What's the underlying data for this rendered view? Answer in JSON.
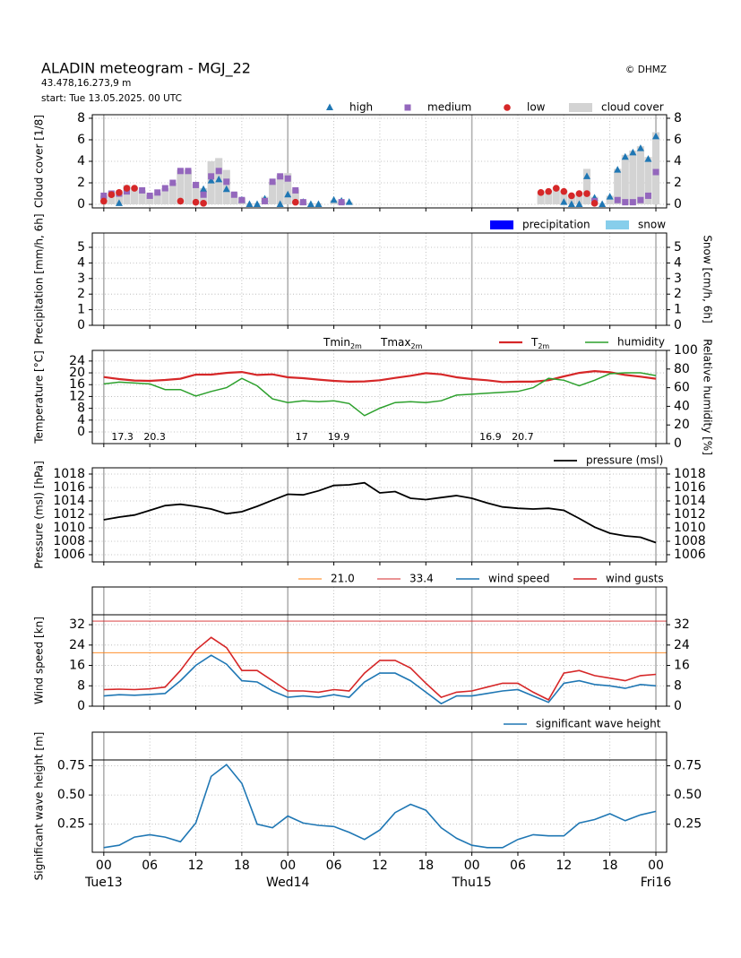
{
  "header": {
    "title": "ALADIN meteogram - MGJ_22",
    "coords": "43.478,16.273,9 m",
    "start": "start: Tue 13.05.2025. 00 UTC",
    "credit": "© DHMZ"
  },
  "time_axis": {
    "xlim": [
      -1.5,
      73.4
    ],
    "xticks": [
      {
        "value": 0,
        "label": "00"
      },
      {
        "value": 6,
        "label": "06"
      },
      12,
      18,
      {
        "value": 24,
        "label": "00"
      },
      {
        "value": 30,
        "label": "06"
      },
      {
        "value": 36,
        "label": "12"
      },
      {
        "value": 42,
        "label": "18"
      },
      {
        "value": 48,
        "label": "00"
      },
      {
        "value": 54,
        "label": "06"
      },
      {
        "value": 60,
        "label": "12"
      },
      {
        "value": 66,
        "label": "18"
      },
      {
        "value": 72,
        "label": "00"
      }
    ],
    "day_ticks": [
      {
        "value": 0,
        "label": "Tue13"
      },
      {
        "value": 24,
        "label": "Wed14"
      },
      {
        "value": 48,
        "label": "Thu15"
      },
      {
        "value": 72,
        "label": "Fri16"
      }
    ]
  },
  "chart_data": [
    {
      "type": "scatter",
      "ylabel": "Cloud cover [1/8]",
      "ylim": [
        -0.33,
        8.33
      ],
      "yticks": [
        0,
        2,
        4,
        6,
        8
      ],
      "grid": true,
      "x": [
        0,
        1,
        2,
        3,
        4,
        5,
        6,
        7,
        8,
        9,
        10,
        11,
        12,
        13,
        14,
        15,
        16,
        17,
        18,
        19,
        20,
        21,
        22,
        23,
        24,
        25,
        26,
        27,
        28,
        29,
        30,
        31,
        32,
        33,
        34,
        35,
        36,
        37,
        38,
        39,
        40,
        41,
        42,
        43,
        44,
        45,
        46,
        47,
        48,
        49,
        50,
        51,
        52,
        53,
        54,
        55,
        56,
        57,
        58,
        59,
        60,
        61,
        62,
        63,
        64,
        65,
        66,
        67,
        68,
        69,
        70,
        71,
        72
      ],
      "series": [
        {
          "name": "high",
          "type": "scatter",
          "marker": "triangle",
          "color": "#1f77b4",
          "values": [
            null,
            null,
            0.1,
            null,
            null,
            null,
            null,
            null,
            null,
            null,
            null,
            null,
            null,
            1.4,
            2.2,
            2.3,
            1.4,
            null,
            0.4,
            0,
            0,
            0.5,
            null,
            0,
            0.9,
            null,
            0.2,
            0,
            0,
            null,
            0.4,
            0.3,
            0.2,
            null,
            null,
            null,
            null,
            null,
            null,
            null,
            null,
            null,
            null,
            null,
            null,
            null,
            null,
            null,
            null,
            null,
            null,
            null,
            null,
            null,
            null,
            null,
            null,
            null,
            null,
            null,
            0.2,
            0,
            0,
            2.6,
            0.6,
            0,
            0.7,
            3.2,
            4.4,
            4.8,
            5.2,
            4.2,
            6.3
          ]
        },
        {
          "name": "medium",
          "type": "scatter",
          "marker": "square",
          "color": "#9467bd",
          "values": [
            0.8,
            1.0,
            1.0,
            1.2,
            null,
            1.3,
            0.8,
            1.1,
            1.5,
            2.0,
            3.1,
            3.1,
            1.8,
            0.9,
            2.6,
            3.1,
            2.1,
            0.9,
            0.4,
            null,
            null,
            0.3,
            2.1,
            2.6,
            2.4,
            1.3,
            0.2,
            null,
            null,
            null,
            null,
            0.2,
            null,
            null,
            null,
            null,
            null,
            null,
            null,
            null,
            null,
            null,
            null,
            null,
            null,
            null,
            null,
            null,
            null,
            null,
            null,
            null,
            null,
            null,
            null,
            null,
            null,
            null,
            null,
            null,
            null,
            null,
            null,
            null,
            0.3,
            null,
            null,
            0.4,
            0.2,
            0.2,
            0.4,
            0.8,
            3.0
          ]
        },
        {
          "name": "low",
          "type": "scatter",
          "marker": "circle",
          "color": "#d62728",
          "values": [
            0.3,
            0.9,
            1.1,
            1.5,
            1.5,
            null,
            null,
            null,
            null,
            null,
            0.3,
            null,
            0.2,
            0.1,
            null,
            null,
            null,
            null,
            null,
            null,
            null,
            null,
            null,
            null,
            null,
            0.2,
            null,
            null,
            null,
            null,
            null,
            null,
            null,
            null,
            null,
            null,
            null,
            null,
            null,
            null,
            null,
            null,
            null,
            null,
            null,
            null,
            null,
            null,
            null,
            null,
            null,
            null,
            null,
            null,
            null,
            null,
            null,
            1.1,
            1.2,
            1.5,
            1.2,
            0.8,
            1.0,
            1.0,
            0.1,
            null,
            null,
            null,
            null,
            null,
            null,
            null,
            null
          ]
        },
        {
          "name": "cloud cover",
          "type": "bar",
          "color": "#d3d3d3",
          "values": [
            0.8,
            1.2,
            1.1,
            1.8,
            1.6,
            1.3,
            0.9,
            1.1,
            1.5,
            2.0,
            3.2,
            3.2,
            1.9,
            1.5,
            4.0,
            4.3,
            3.2,
            1.1,
            0.6,
            0.1,
            0.1,
            0.7,
            2.1,
            2.7,
            2.9,
            1.4,
            0.3,
            0.1,
            0.1,
            0,
            0.4,
            0.3,
            0.2,
            0,
            0,
            0,
            0,
            0,
            0,
            0,
            0,
            0,
            0,
            0,
            0,
            0,
            0,
            0,
            0,
            0,
            0,
            0,
            0,
            0,
            0,
            0,
            0,
            1.2,
            1.3,
            1.6,
            1.3,
            0.9,
            1.1,
            3.3,
            0.7,
            0.1,
            0.8,
            3.3,
            4.6,
            5.0,
            5.4,
            4.4,
            6.7
          ]
        }
      ]
    },
    {
      "type": "bar",
      "ylabel": "Precipitation [mm/h, 6h]",
      "y2label": "Snow [cm/h, 6h]",
      "ylim": [
        0,
        5.92
      ],
      "yticks": [
        0,
        1,
        2,
        3,
        4,
        5
      ],
      "grid": true,
      "x": [
        0,
        6,
        12,
        18,
        24,
        30,
        36,
        42,
        48,
        54,
        60,
        66,
        72
      ],
      "series": [
        {
          "name": "precipitation",
          "type": "bar",
          "color": "#0000ff",
          "values": [
            0,
            0,
            0,
            0,
            0,
            0,
            0,
            0,
            0,
            0,
            0,
            0,
            0
          ]
        },
        {
          "name": "snow",
          "type": "bar",
          "color": "#87ceeb",
          "values": [
            0,
            0,
            0,
            0,
            0,
            0,
            0,
            0,
            0,
            0,
            0,
            0,
            0
          ]
        }
      ]
    },
    {
      "type": "line",
      "ylabel": "Temperature [°C]",
      "y2label": "Relative humidity [%]",
      "ylim": [
        -3.95,
        27.6
      ],
      "yticks": [
        0,
        4,
        8,
        12,
        16,
        20,
        24
      ],
      "y2lim": [
        0,
        100
      ],
      "y2ticks": [
        0,
        20,
        40,
        60,
        80,
        100
      ],
      "grid": true,
      "x": [
        0,
        2,
        4,
        6,
        8,
        10,
        12,
        14,
        16,
        18,
        20,
        22,
        24,
        26,
        28,
        30,
        32,
        34,
        36,
        38,
        40,
        42,
        44,
        46,
        48,
        50,
        52,
        54,
        56,
        58,
        60,
        62,
        64,
        66,
        68,
        70,
        72
      ],
      "tmin_label": {
        "text": "Tmin",
        "sub": "2m",
        "color": "#1f77b4"
      },
      "tmax_label": {
        "text": "Tmax",
        "sub": "2m",
        "color": "#d62728"
      },
      "daily": {
        "tmin": [
          17.3,
          17.0,
          16.9
        ],
        "tmax": [
          20.3,
          19.9,
          20.7
        ]
      },
      "series": [
        {
          "name": "T",
          "name_sub": "2m",
          "type": "line",
          "color": "#d62728",
          "width": 2.2,
          "values": [
            18.6,
            17.9,
            17.4,
            17.3,
            17.6,
            18.0,
            19.4,
            19.4,
            20.0,
            20.3,
            19.3,
            19.5,
            18.5,
            18.2,
            17.7,
            17.3,
            17.0,
            17.1,
            17.5,
            18.3,
            19.0,
            19.9,
            19.5,
            18.5,
            17.9,
            17.5,
            16.9,
            17.0,
            17.0,
            17.5,
            18.8,
            20.0,
            20.6,
            20.2,
            19.3,
            18.7,
            18.0
          ]
        },
        {
          "name": "humidity",
          "type": "line",
          "axis": "y2",
          "color": "#2ca02c",
          "width": 1.5,
          "values": [
            64,
            66,
            65,
            64,
            58,
            58,
            51,
            56,
            60,
            70,
            62,
            48,
            44,
            46,
            45,
            46,
            43,
            30,
            38,
            44,
            45,
            44,
            46,
            52,
            53,
            54,
            55,
            56,
            60,
            70,
            68,
            62,
            68,
            75,
            76,
            76,
            73
          ]
        }
      ]
    },
    {
      "type": "line",
      "ylabel": "Pressure (msl) [hPa]",
      "ylim": [
        1004.93,
        1018.93
      ],
      "yticks": [
        1006,
        1008,
        1010,
        1012,
        1014,
        1016,
        1018
      ],
      "grid": true,
      "x": [
        0,
        2,
        4,
        6,
        8,
        10,
        12,
        14,
        16,
        18,
        20,
        22,
        24,
        26,
        28,
        30,
        32,
        34,
        36,
        38,
        40,
        42,
        44,
        46,
        48,
        50,
        52,
        54,
        56,
        58,
        60,
        62,
        64,
        66,
        68,
        70,
        72
      ],
      "series": [
        {
          "name": "pressure (msl)",
          "type": "line",
          "color": "#000000",
          "width": 1.8,
          "values": [
            1011.2,
            1011.6,
            1011.9,
            1012.6,
            1013.3,
            1013.5,
            1013.2,
            1012.8,
            1012.1,
            1012.4,
            1013.2,
            1014.1,
            1015.0,
            1014.9,
            1015.5,
            1016.3,
            1016.4,
            1016.7,
            1015.2,
            1015.4,
            1014.4,
            1014.2,
            1014.5,
            1014.8,
            1014.4,
            1013.7,
            1013.1,
            1012.9,
            1012.8,
            1012.9,
            1012.6,
            1011.4,
            1010.1,
            1009.2,
            1008.8,
            1008.6,
            1007.8
          ]
        }
      ]
    },
    {
      "type": "line",
      "ylabel": "Wind speed [kn]",
      "ylim": [
        0,
        35.9
      ],
      "yticks": [
        0,
        8,
        16,
        24,
        32
      ],
      "grid": true,
      "x": [
        0,
        2,
        4,
        6,
        8,
        10,
        12,
        14,
        16,
        18,
        20,
        22,
        24,
        26,
        28,
        30,
        32,
        34,
        36,
        38,
        40,
        42,
        44,
        46,
        48,
        50,
        52,
        54,
        56,
        58,
        60,
        62,
        64,
        66,
        68,
        70,
        72
      ],
      "thresholds": [
        {
          "value": 21.0,
          "label": "21.0",
          "color": "#ff7f0e"
        },
        {
          "value": 33.4,
          "label": "33.4",
          "color": "#d62728"
        }
      ],
      "series": [
        {
          "name": "wind speed",
          "type": "line",
          "color": "#1f77b4",
          "width": 1.6,
          "values": [
            4.0,
            4.5,
            4.3,
            4.6,
            5.0,
            10.0,
            16.0,
            20.0,
            16.5,
            10.0,
            9.5,
            6.0,
            3.5,
            4.0,
            3.5,
            4.5,
            3.5,
            9.5,
            13.0,
            13.0,
            10.0,
            5.5,
            1.0,
            4.0,
            4.0,
            5.0,
            6.0,
            6.5,
            4.0,
            1.5,
            9.0,
            10.0,
            8.5,
            8.0,
            7.0,
            8.5,
            8.0
          ]
        },
        {
          "name": "wind gusts",
          "type": "line",
          "color": "#d62728",
          "width": 1.6,
          "values": [
            6.5,
            6.7,
            6.5,
            6.8,
            7.5,
            14,
            22,
            27,
            23,
            14,
            14,
            10,
            6,
            6,
            5.5,
            6.5,
            6,
            13,
            18,
            18,
            15,
            9,
            3.5,
            5.5,
            6,
            7.5,
            9,
            9,
            5.5,
            2.5,
            13,
            14,
            12,
            11,
            10,
            12,
            12.5
          ]
        }
      ]
    },
    {
      "type": "line",
      "ylabel": "Significant wave height [m]",
      "ylim": [
        0.01,
        0.8
      ],
      "yticks": [
        0.25,
        {
          "value": 0.5,
          "label": "0.50"
        },
        0.75
      ],
      "grid": true,
      "x": [
        0,
        2,
        4,
        6,
        8,
        10,
        12,
        14,
        16,
        18,
        20,
        22,
        24,
        26,
        28,
        30,
        32,
        34,
        36,
        38,
        40,
        42,
        44,
        46,
        48,
        50,
        52,
        54,
        56,
        58,
        60,
        62,
        64,
        66,
        68,
        70,
        72
      ],
      "series": [
        {
          "name": "significant wave height",
          "type": "line",
          "color": "#1f77b4",
          "width": 1.6,
          "values": [
            0.05,
            0.07,
            0.14,
            0.16,
            0.14,
            0.1,
            0.26,
            0.66,
            0.76,
            0.6,
            0.25,
            0.22,
            0.32,
            0.26,
            0.24,
            0.23,
            0.18,
            0.12,
            0.2,
            0.35,
            0.42,
            0.37,
            0.22,
            0.13,
            0.07,
            0.05,
            0.05,
            0.12,
            0.16,
            0.15,
            0.15,
            0.26,
            0.29,
            0.34,
            0.28,
            0.33,
            0.36
          ]
        }
      ]
    }
  ]
}
